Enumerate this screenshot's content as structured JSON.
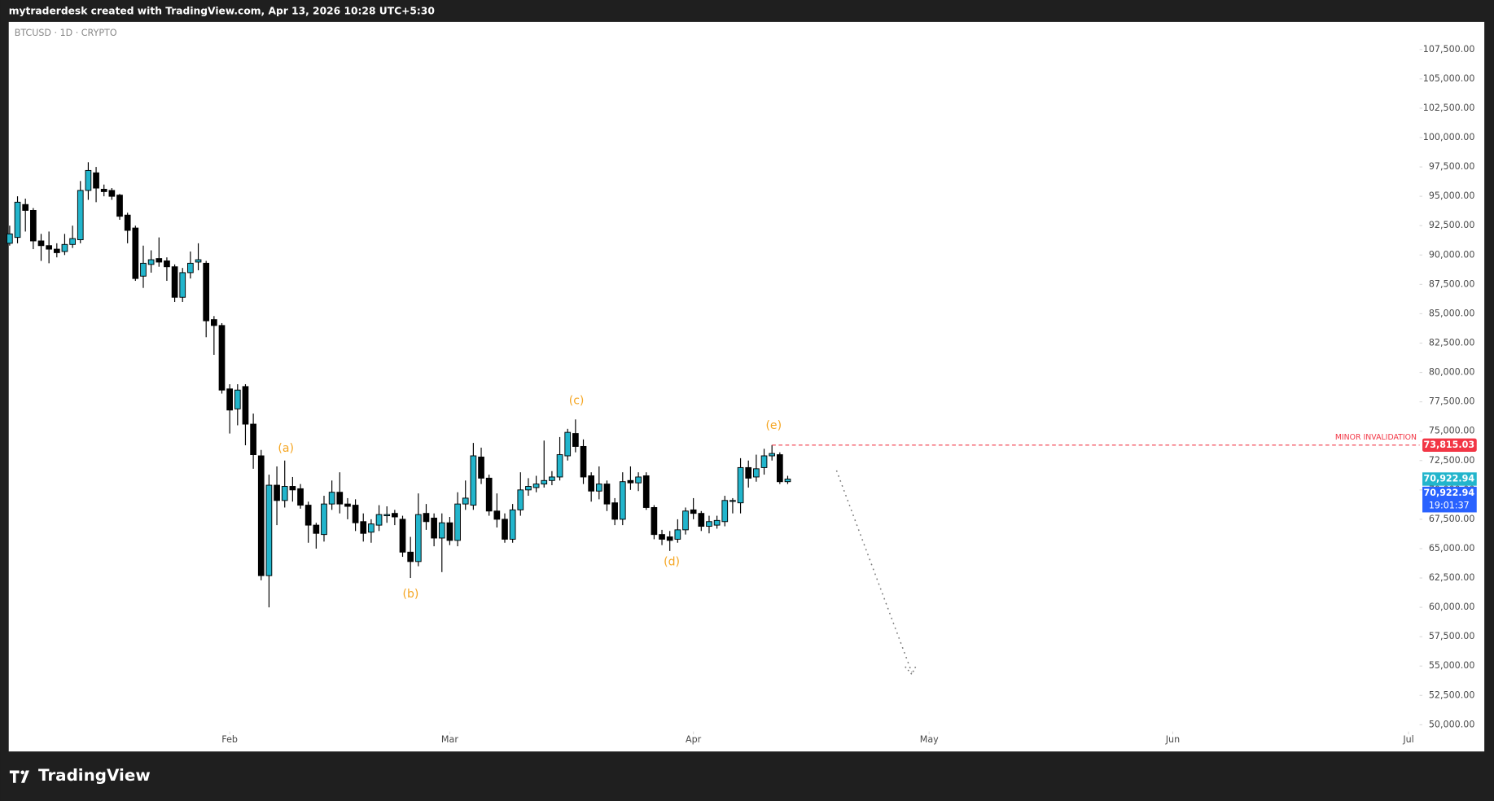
{
  "header": "mytraderdesk created with TradingView.com, Apr 13, 2026 10:28 UTC+5:30",
  "brand": "TradingView",
  "chart_data": {
    "type": "candlestick",
    "title": "BTCUSD · 1D · CRYPTO",
    "up_color": "#22b5cc",
    "down_color": "#000000",
    "open": [
      91000,
      91500,
      94300,
      93800,
      91200,
      90800,
      90500,
      90300,
      90900,
      91300,
      95500,
      97000,
      95600,
      95500,
      95100,
      93400,
      92300,
      88200,
      89200,
      89700,
      89500,
      89000,
      86400,
      88500,
      89400,
      89300,
      84500,
      84000,
      78600,
      76900,
      78800,
      75600,
      72900,
      62700,
      70400,
      69100,
      70300,
      70100,
      68700,
      67000,
      66200,
      68800,
      69800,
      68800,
      68700,
      67300,
      66400,
      67000,
      67800,
      68000,
      67500,
      64700,
      63900,
      68000,
      67600,
      65900,
      67200,
      65700,
      68800,
      68700,
      72800,
      71000,
      68200,
      67500,
      65800,
      68300,
      70000,
      70200,
      70500,
      70800,
      71100,
      72900,
      74800,
      73700,
      71200,
      69900,
      70500,
      68900,
      67500,
      70800,
      70600,
      71200,
      68500,
      66200,
      66000,
      65800,
      66600,
      68300,
      68000,
      66900,
      67000,
      67300,
      69100,
      68900,
      71900,
      71100,
      71900,
      72900,
      73000,
      70700
    ],
    "high": [
      92500,
      95000,
      94800,
      94000,
      91800,
      92000,
      91000,
      91800,
      92500,
      96300,
      97900,
      97500,
      96000,
      95700,
      95200,
      93600,
      92500,
      90800,
      90400,
      91500,
      89800,
      89200,
      88900,
      90300,
      91000,
      89500,
      84800,
      84200,
      79000,
      79000,
      79000,
      76500,
      73400,
      71300,
      72000,
      72500,
      71100,
      70500,
      69000,
      67200,
      69500,
      70800,
      71500,
      69300,
      69200,
      68000,
      67500,
      68700,
      68600,
      68300,
      67800,
      66000,
      69700,
      68800,
      68000,
      68000,
      67700,
      69800,
      70800,
      74000,
      73600,
      71300,
      69700,
      68000,
      68800,
      71500,
      71000,
      71200,
      74200,
      71600,
      74500,
      75200,
      76000,
      74300,
      71500,
      72000,
      70800,
      69300,
      71500,
      72000,
      71500,
      71500,
      68700,
      66600,
      66500,
      67500,
      68500,
      69300,
      68200,
      67800,
      67800,
      69500,
      69300,
      72700,
      72500,
      73000,
      73500,
      73815.03,
      73200,
      71200
    ],
    "low": [
      90800,
      91000,
      92000,
      90500,
      89500,
      89300,
      89800,
      90000,
      90600,
      91000,
      94700,
      94500,
      95000,
      94700,
      93000,
      91000,
      87800,
      87200,
      88500,
      89000,
      87800,
      86000,
      86000,
      88000,
      88700,
      83000,
      81500,
      78200,
      74800,
      75500,
      73800,
      71800,
      62300,
      60000,
      67000,
      68500,
      69000,
      68400,
      65500,
      65000,
      65600,
      68300,
      68000,
      67500,
      66500,
      65600,
      65500,
      66500,
      67200,
      67000,
      64300,
      62500,
      63500,
      66600,
      65200,
      63000,
      65300,
      65200,
      68300,
      68300,
      70500,
      67800,
      66800,
      65500,
      65500,
      67800,
      69500,
      69800,
      70200,
      70400,
      70800,
      72500,
      73200,
      70500,
      69000,
      69200,
      68200,
      67000,
      67000,
      70000,
      69900,
      68300,
      65800,
      65300,
      64800,
      65500,
      66200,
      67500,
      66500,
      66300,
      66700,
      66900,
      68000,
      68000,
      70200,
      70700,
      71300,
      72500,
      70500,
      70500
    ],
    "close": [
      91800,
      94500,
      93800,
      91200,
      90800,
      90500,
      90200,
      90900,
      91400,
      95500,
      97200,
      95700,
      95400,
      95000,
      93300,
      92100,
      88000,
      89300,
      89600,
      89400,
      89000,
      86400,
      88500,
      89300,
      89600,
      84400,
      84000,
      78500,
      76800,
      78500,
      75600,
      73000,
      62700,
      70400,
      69100,
      70300,
      70000,
      68700,
      67000,
      66300,
      68800,
      69800,
      68800,
      68600,
      67200,
      66300,
      67100,
      67900,
      67900,
      67700,
      64700,
      63900,
      67900,
      67300,
      65900,
      67200,
      65700,
      68800,
      69300,
      72900,
      71000,
      68200,
      67500,
      65800,
      68300,
      70000,
      70300,
      70500,
      70800,
      71100,
      73000,
      74900,
      73700,
      71100,
      69900,
      70500,
      68800,
      67500,
      70700,
      70600,
      71100,
      68500,
      66200,
      65800,
      65700,
      66600,
      68200,
      68000,
      66900,
      67300,
      67400,
      69100,
      69100,
      71900,
      71000,
      71800,
      72900,
      73100,
      70700,
      70922.94
    ],
    "xlim": [
      -0.12,
      179.4
    ],
    "xticks": [
      {
        "value": 28,
        "label": "Feb"
      },
      {
        "value": 56,
        "label": "Mar"
      },
      {
        "value": 87,
        "label": "Apr"
      },
      {
        "value": 117,
        "label": "May"
      },
      {
        "value": 148,
        "label": "Jun"
      },
      {
        "value": 178,
        "label": "Jul"
      }
    ],
    "ylim": [
      49430,
      109850
    ],
    "yticks": [
      {
        "value": 50000,
        "label": "50,000.00"
      },
      {
        "value": 52500,
        "label": "52,500.00"
      },
      {
        "value": 55000,
        "label": "55,000.00"
      },
      {
        "value": 57500,
        "label": "57,500.00"
      },
      {
        "value": 60000,
        "label": "60,000.00"
      },
      {
        "value": 62500,
        "label": "62,500.00"
      },
      {
        "value": 65000,
        "label": "65,000.00"
      },
      {
        "value": 67500,
        "label": "67,500.00"
      },
      {
        "value": 70000,
        "label": "70,000.00"
      },
      {
        "value": 72500,
        "label": "72,500.00"
      },
      {
        "value": 75000,
        "label": "75,000.00"
      },
      {
        "value": 77500,
        "label": "77,500.00"
      },
      {
        "value": 80000,
        "label": "80,000.00"
      },
      {
        "value": 82500,
        "label": "82,500.00"
      },
      {
        "value": 85000,
        "label": "85,000.00"
      },
      {
        "value": 87500,
        "label": "87,500.00"
      },
      {
        "value": 90000,
        "label": "90,000.00"
      },
      {
        "value": 92500,
        "label": "92,500.00"
      },
      {
        "value": 95000,
        "label": "95,000.00"
      },
      {
        "value": 97500,
        "label": "97,500.00"
      },
      {
        "value": 100000,
        "label": "100,000.00"
      },
      {
        "value": 102500,
        "label": "102,500.00"
      },
      {
        "value": 105000,
        "label": "105,000.00"
      },
      {
        "value": 107500,
        "label": "107,500.00"
      }
    ],
    "grid": false,
    "annotations": [
      "(a)",
      "(b)",
      "(c)",
      "(d)",
      "(e)"
    ],
    "invalidation": {
      "label": "MINOR INVALIDATION",
      "value": 73815.03,
      "value_label": "73,815.03",
      "color": "#f23645"
    },
    "last_price": {
      "value": 70922.94,
      "label": "70,922.94",
      "color": "#22b5cc"
    },
    "countdown": {
      "label": "19:01:37",
      "color": "#2962ff"
    }
  }
}
